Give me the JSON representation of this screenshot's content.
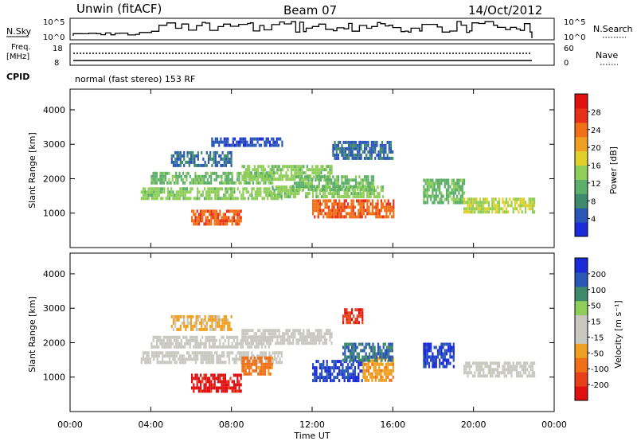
{
  "header": {
    "station": "Unwin (fitACF)",
    "beam": "Beam 07",
    "date": "14/Oct/2012"
  },
  "status_panels": {
    "nsky_label": "N.Sky",
    "nsky_ticks": [
      "10^5",
      "10^0"
    ],
    "nsearch_label": "N.Search",
    "nsearch_ticks": [
      "10^5",
      "10^0"
    ],
    "freq_label_1": "Freq.",
    "freq_label_2": "[MHz]",
    "freq_ticks": [
      "18",
      "8"
    ],
    "nave_label": "Nave",
    "nave_ticks": [
      "60",
      "0"
    ],
    "cpid_label": "CPID",
    "cpid_text": "normal (fast stereo) 153 RF"
  },
  "chart_data": [
    {
      "type": "heatmap",
      "name": "power",
      "ylabel": "Slant Range [km]",
      "yticks": [
        "4000",
        "3000",
        "2000",
        "1000"
      ],
      "ylim": [
        0,
        4600
      ],
      "colorbar_label": "Power [dB]",
      "colorbar_ticks": [
        "28",
        "24",
        "20",
        "16",
        "12",
        "8",
        "4"
      ],
      "colorbar_range": [
        0,
        32
      ],
      "colors": [
        "#1a2ad8",
        "#2a56b8",
        "#3f8a6c",
        "#5cae6a",
        "#8fce5a",
        "#e0d02a",
        "#f0a020",
        "#f07018",
        "#e83018",
        "#e01010"
      ],
      "regions": [
        {
          "t": [
            3.5,
            10.5
          ],
          "r": [
            1400,
            1750
          ],
          "v": 14
        },
        {
          "t": [
            4.0,
            10.0
          ],
          "r": [
            1850,
            2200
          ],
          "v": 12
        },
        {
          "t": [
            6.0,
            8.5
          ],
          "r": [
            650,
            1100
          ],
          "v": 25
        },
        {
          "t": [
            5.0,
            8.0
          ],
          "r": [
            2400,
            2800
          ],
          "v": 6
        },
        {
          "t": [
            8.5,
            13.0
          ],
          "r": [
            2000,
            2400
          ],
          "v": 14
        },
        {
          "t": [
            10.0,
            15.5
          ],
          "r": [
            1500,
            1800
          ],
          "v": 14
        },
        {
          "t": [
            12.0,
            16.0
          ],
          "r": [
            900,
            1400
          ],
          "v": 25
        },
        {
          "t": [
            11.0,
            15.0
          ],
          "r": [
            1700,
            2100
          ],
          "v": 12
        },
        {
          "t": [
            13.0,
            16.0
          ],
          "r": [
            2600,
            3100
          ],
          "v": 6
        },
        {
          "t": [
            7.0,
            10.5
          ],
          "r": [
            3000,
            3200
          ],
          "v": 4
        },
        {
          "t": [
            17.5,
            19.5
          ],
          "r": [
            1300,
            2000
          ],
          "v": 12
        },
        {
          "t": [
            19.5,
            23.0
          ],
          "r": [
            1050,
            1450
          ],
          "v": 16
        }
      ]
    },
    {
      "type": "heatmap",
      "name": "velocity",
      "ylabel": "Slant Range [km]",
      "yticks": [
        "4000",
        "3000",
        "2000",
        "1000"
      ],
      "ylim": [
        0,
        4600
      ],
      "colorbar_label": "Velocity [m s⁻¹]",
      "colorbar_ticks": [
        "200",
        "100",
        "50",
        "15",
        "-15",
        "-50",
        "-100",
        "-200"
      ],
      "colorbar_range": [
        -250,
        250
      ],
      "colors": [
        "#e01010",
        "#e84018",
        "#f07018",
        "#f0a020",
        "#c8c8c0",
        "#c8c8c0",
        "#8fce5a",
        "#3f8a6c",
        "#2a56b8",
        "#1a2ad8"
      ],
      "regions": [
        {
          "t": [
            3.5,
            10.5
          ],
          "r": [
            1400,
            1750
          ],
          "v": 0
        },
        {
          "t": [
            4.0,
            10.0
          ],
          "r": [
            1850,
            2200
          ],
          "v": 0
        },
        {
          "t": [
            6.0,
            8.5
          ],
          "r": [
            600,
            1100
          ],
          "v": -220
        },
        {
          "t": [
            8.5,
            10.0
          ],
          "r": [
            1100,
            1600
          ],
          "v": -120
        },
        {
          "t": [
            8.5,
            13.0
          ],
          "r": [
            2000,
            2400
          ],
          "v": 0
        },
        {
          "t": [
            12.0,
            14.5
          ],
          "r": [
            900,
            1500
          ],
          "v": 200
        },
        {
          "t": [
            14.5,
            16.0
          ],
          "r": [
            900,
            1600
          ],
          "v": -80
        },
        {
          "t": [
            13.5,
            16.0
          ],
          "r": [
            1500,
            2000
          ],
          "v": 150
        },
        {
          "t": [
            13.5,
            14.5
          ],
          "r": [
            2600,
            3000
          ],
          "v": -200
        },
        {
          "t": [
            17.5,
            19.0
          ],
          "r": [
            1300,
            2000
          ],
          "v": 200
        },
        {
          "t": [
            19.5,
            23.0
          ],
          "r": [
            1050,
            1450
          ],
          "v": 0
        },
        {
          "t": [
            5.0,
            8.0
          ],
          "r": [
            2400,
            2800
          ],
          "v": -60
        }
      ]
    }
  ],
  "x_axis": {
    "label": "Time UT",
    "ticks": [
      "00:00",
      "04:00",
      "08:00",
      "12:00",
      "16:00",
      "20:00",
      "00:00"
    ],
    "range": [
      0,
      24
    ]
  }
}
